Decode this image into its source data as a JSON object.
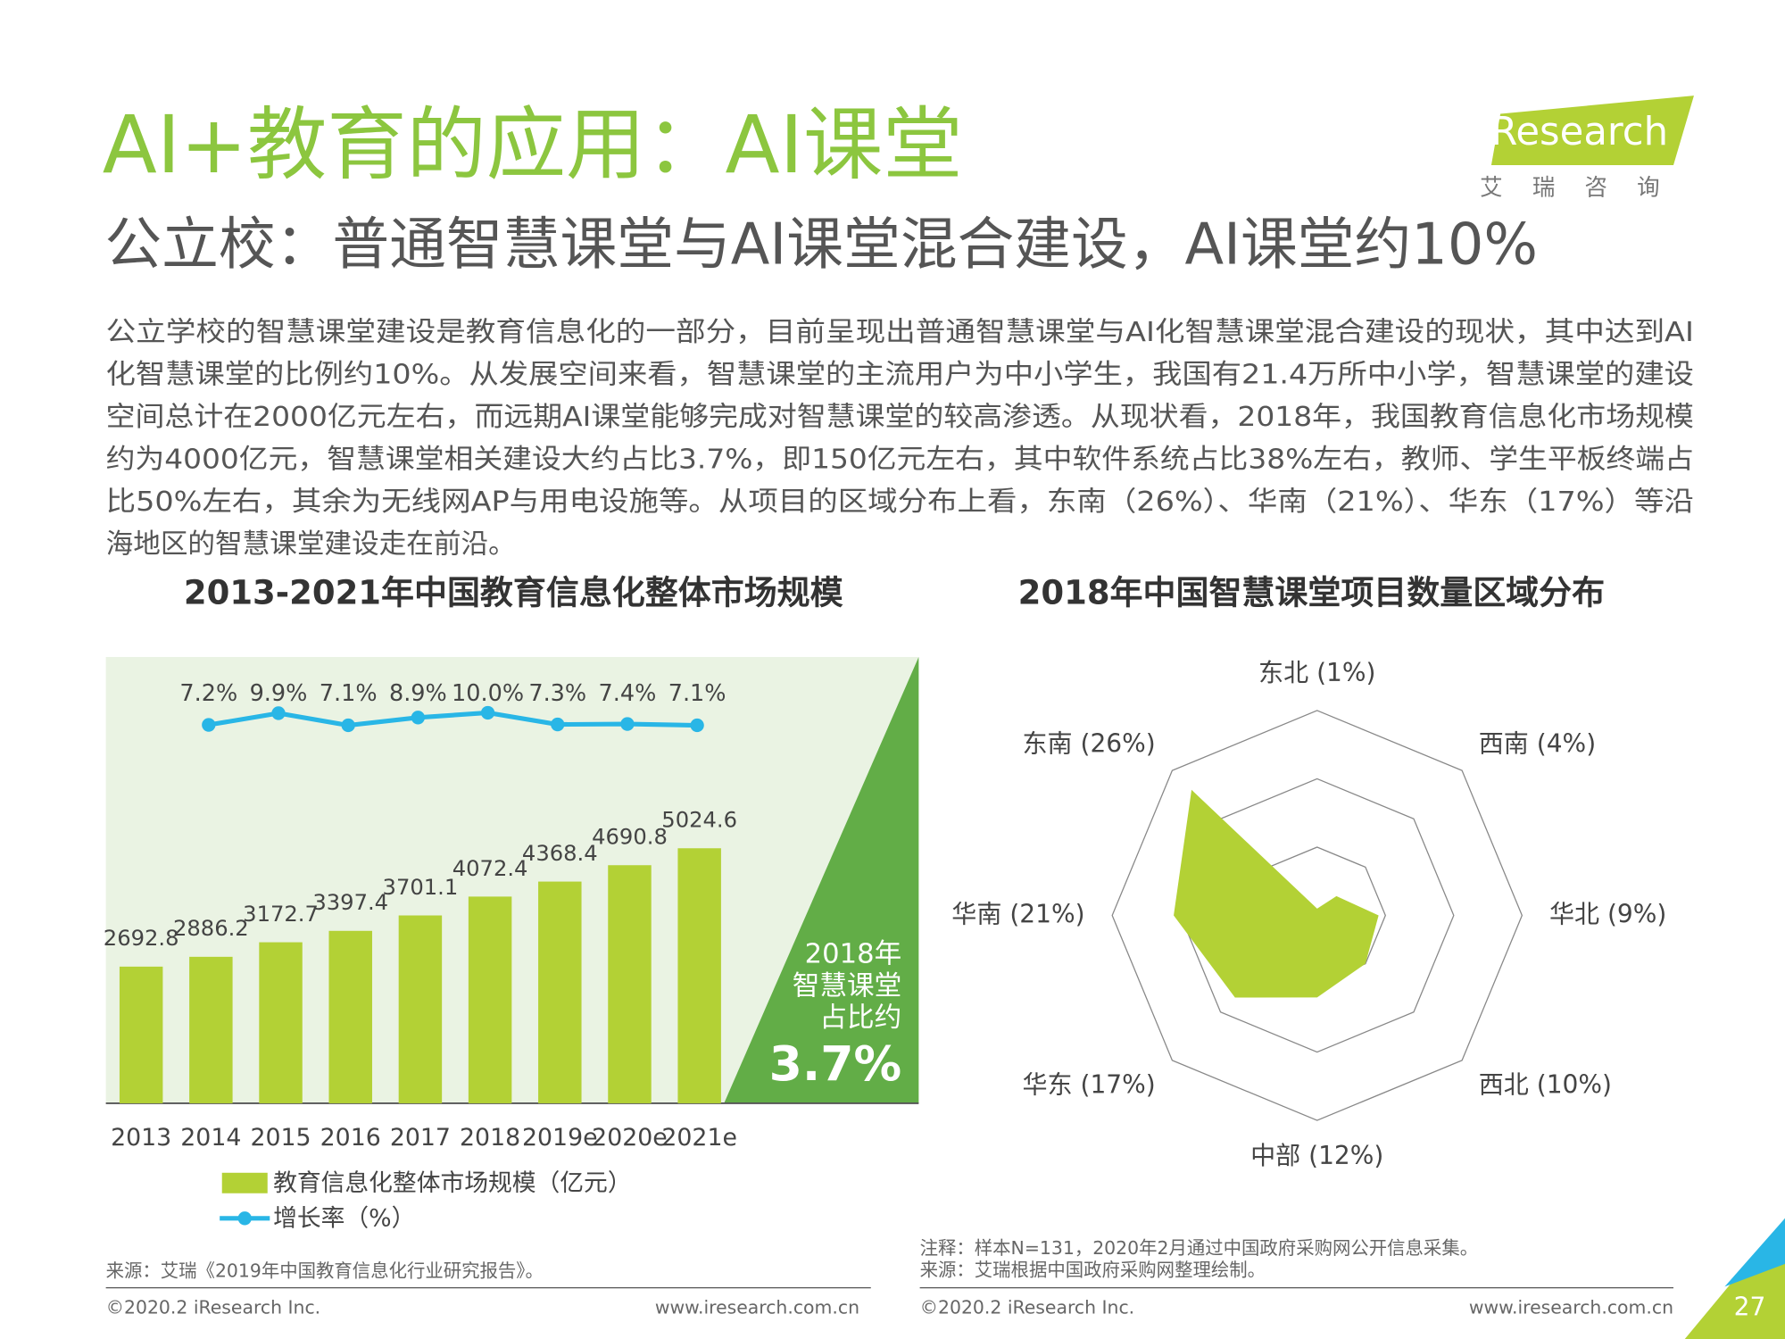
{
  "header": {
    "title": "AI+教育的应用：AI课堂",
    "subtitle": "公立校：普通智慧课堂与AI课堂混合建设，AI课堂约10%",
    "logo": "iResearch",
    "logo_sub": "艾瑞咨询"
  },
  "body": {
    "lines": [
      "公立学校的智慧课堂建设是教育信息化的一部分，目前呈现出普通智慧课堂与AI化智慧课堂混合建设的现状，其中达到AI",
      "化智慧课堂的比例约10%。从发展空间来看，智慧课堂的主流用户为中小学生，我国有21.4万所中小学，智慧课堂的建设",
      "空间总计在2000亿元左右，而远期AI课堂能够完成对智慧课堂的较高渗透。从现状看，2018年，我国教育信息化市场规模",
      "约为4000亿元，智慧课堂相关建设大约占比3.7%，即150亿元左右，其中软件系统占比38%左右，教师、学生平板终端占",
      "比50%左右，其余为无线网AP与用电设施等。从项目的区域分布上看，东南（26%）、华南（21%）、华东（17%）等沿",
      "海地区的智慧课堂建设走在前沿。"
    ]
  },
  "chart_data": [
    {
      "type": "bar",
      "title": "2013-2021年中国教育信息化整体市场规模",
      "categories": [
        "2013",
        "2014",
        "2015",
        "2016",
        "2017",
        "2018",
        "2019e",
        "2020e",
        "2021e"
      ],
      "series": [
        {
          "name": "教育信息化整体市场规模（亿元）",
          "color": "#b3d135",
          "values": [
            2692.8,
            2886.2,
            3172.7,
            3397.4,
            3701.1,
            4072.4,
            4368.4,
            4690.8,
            5024.6
          ]
        },
        {
          "name": "增长率（%）",
          "color": "#29b6e6",
          "type": "line",
          "values": [
            null,
            7.2,
            9.9,
            7.1,
            8.9,
            10.0,
            7.3,
            7.4,
            7.1
          ],
          "value_labels": [
            null,
            "7.2%",
            "9.9%",
            "7.1%",
            "8.9%",
            "10.0%",
            "7.3%",
            "7.4%",
            "7.1%"
          ]
        }
      ],
      "annotation": {
        "lines": [
          "2018年",
          "智慧课堂",
          "占比约"
        ],
        "highlight": "3.7%"
      },
      "source": "来源：艾瑞《2019年中国教育信息化行业研究报告》。"
    },
    {
      "type": "radar",
      "title": "2018年中国智慧课堂项目数量区域分布",
      "categories": [
        "东北 (1%)",
        "西南 (4%)",
        "华北 (9%)",
        "西北 (10%)",
        "中部 (12%)",
        "华东 (17%)",
        "华南 (21%)",
        "东南 (26%)"
      ],
      "values": [
        1,
        4,
        9,
        10,
        12,
        17,
        21,
        26
      ],
      "color": "#b3d135",
      "rlim": [
        0,
        30
      ],
      "rticks": [
        10,
        20,
        30
      ],
      "grid": true,
      "notes": [
        "注释：样本N=131，2020年2月通过中国政府采购网公开信息采集。",
        "来源：艾瑞根据中国政府采购网整理绘制。"
      ]
    }
  ],
  "footer": {
    "copyright": "©2020.2 iResearch Inc.",
    "url": "www.iresearch.com.cn",
    "page": "27"
  }
}
